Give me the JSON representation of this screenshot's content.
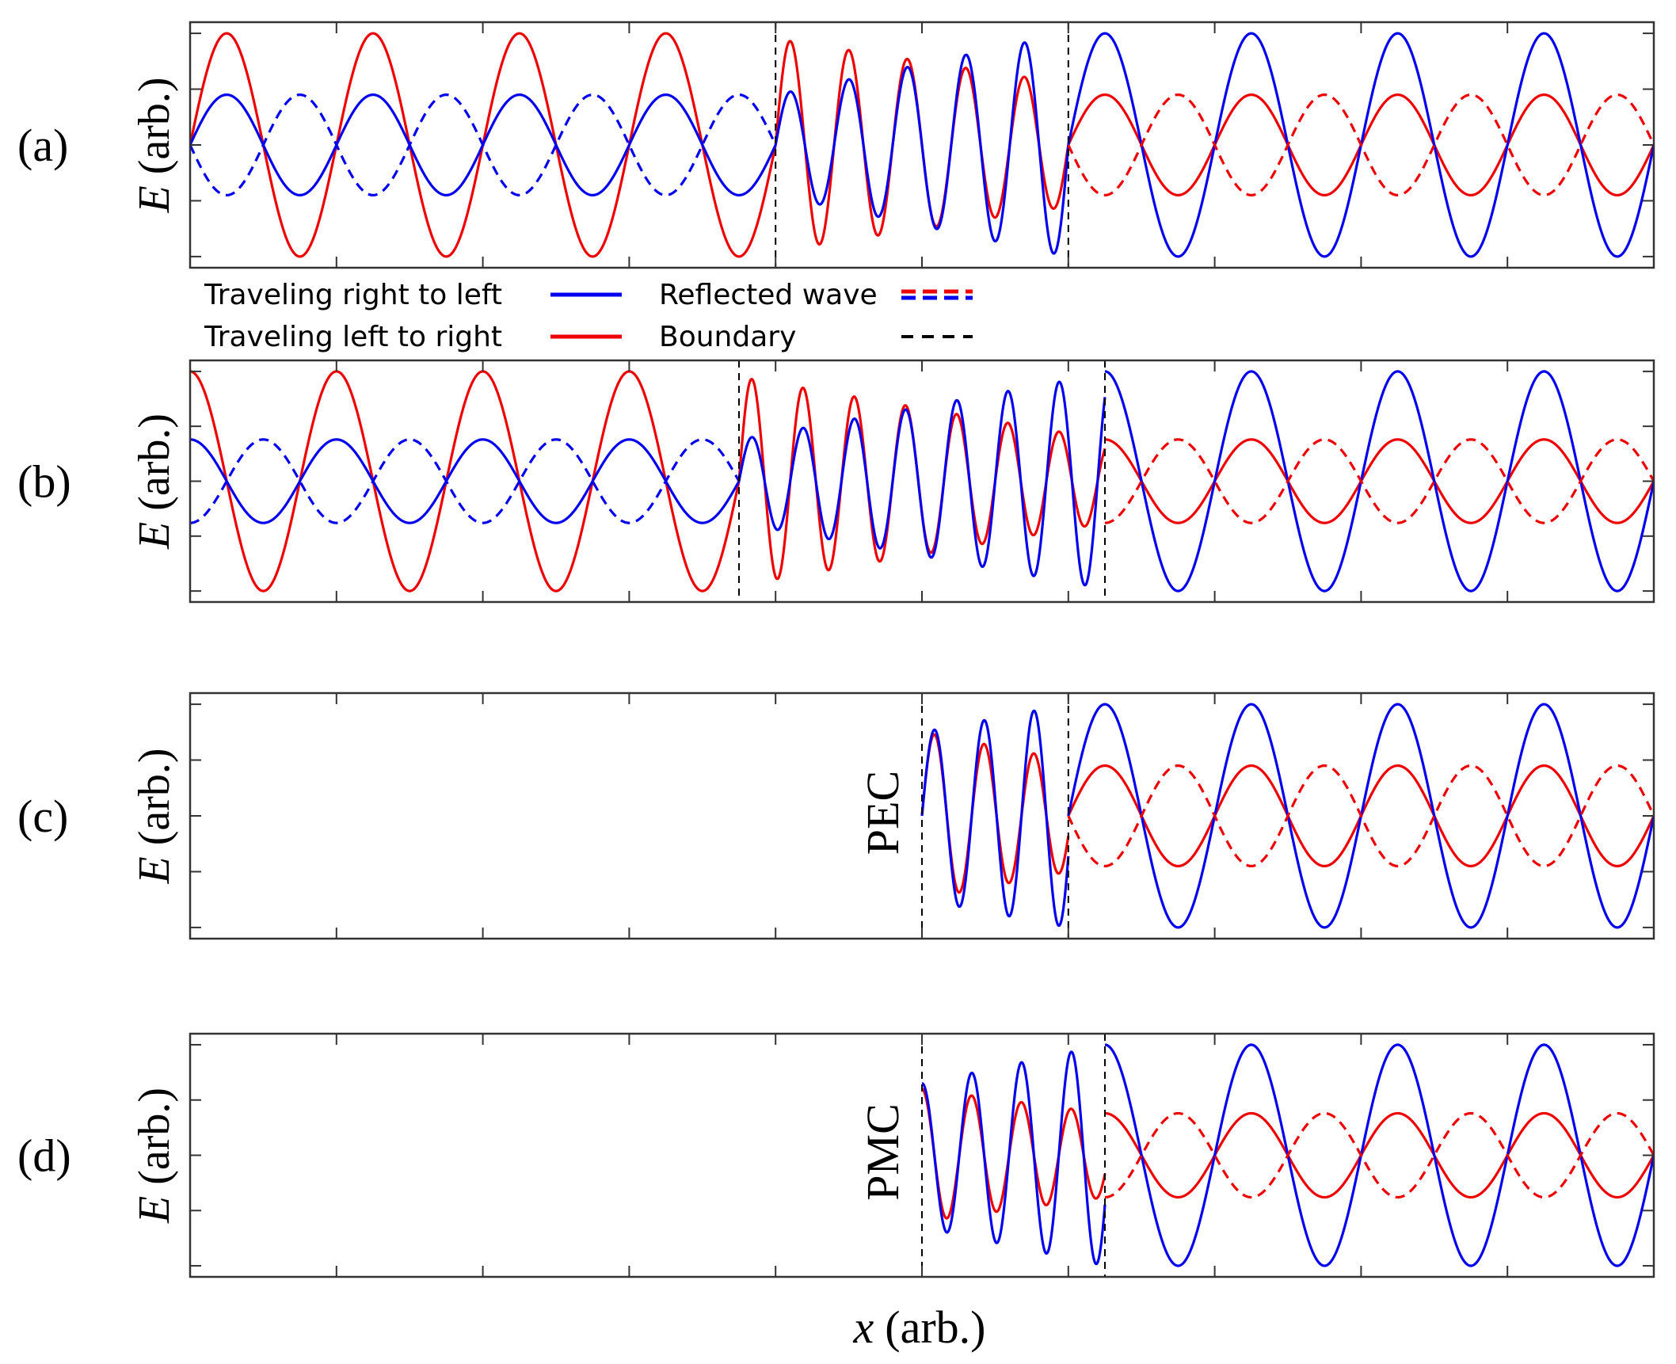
{
  "colors": {
    "right_to_left": "#0000ee",
    "left_to_right": "#ee0000",
    "boundary": "#000000",
    "axes": "#333333"
  },
  "legend": {
    "traveling_right_to_left": "Traveling right to left",
    "traveling_left_to_right": "Traveling left to right",
    "reflected_wave": "Reflected wave",
    "boundary": "Boundary"
  },
  "xlabel": {
    "var": "x",
    "unit": "(arb.)"
  },
  "chart_data": [
    {
      "type": "line",
      "panel_label": "(a)",
      "ylabel": {
        "var": "E",
        "unit": "(arb.)"
      },
      "xlim": [
        0,
        1
      ],
      "ylim": [
        -1.1,
        1.1
      ],
      "grid": false,
      "x_major_ticks": [
        0.1,
        0.2,
        0.3,
        0.4,
        0.5,
        0.6,
        0.7,
        0.8,
        0.9
      ],
      "y_major_ticks": [
        -1,
        -0.5,
        0,
        0.5,
        1
      ],
      "boundaries_x": [
        0.4,
        0.6
      ],
      "region_annotation": "",
      "series": [
        {
          "name": "Traveling left to right",
          "color": "red",
          "style": "solid",
          "x_range": [
            0,
            0.4
          ],
          "amplitude": 1.0,
          "amplitude_end": 1.0,
          "period": 0.1,
          "phase": 0
        },
        {
          "name": "Traveling right to left",
          "color": "blue",
          "style": "solid",
          "x_range": [
            0,
            0.4
          ],
          "amplitude": 0.45,
          "amplitude_end": 0.45,
          "period": 0.1,
          "phase": 0
        },
        {
          "name": "Reflected wave",
          "color": "blue",
          "style": "dashed",
          "x_range": [
            0,
            0.4
          ],
          "amplitude": -0.45,
          "amplitude_end": -0.45,
          "period": 0.1,
          "phase": 0
        },
        {
          "name": "Traveling left to right",
          "color": "red",
          "style": "solid",
          "x_range": [
            0.4,
            0.6
          ],
          "amplitude": 0.95,
          "amplitude_end": 0.55,
          "period": 0.04,
          "phase": 0
        },
        {
          "name": "Traveling right to left",
          "color": "blue",
          "style": "solid",
          "x_range": [
            0.4,
            0.6
          ],
          "amplitude": 0.45,
          "amplitude_end": 1.0,
          "period": 0.04,
          "phase": 0
        },
        {
          "name": "Traveling left to right",
          "color": "red",
          "style": "solid",
          "x_range": [
            0.6,
            1.0
          ],
          "amplitude": 0.45,
          "amplitude_end": 0.45,
          "period": 0.1,
          "phase": 0
        },
        {
          "name": "Traveling right to left",
          "color": "blue",
          "style": "solid",
          "x_range": [
            0.6,
            1.0
          ],
          "amplitude": 1.0,
          "amplitude_end": 1.0,
          "period": 0.1,
          "phase": 0
        },
        {
          "name": "Reflected wave",
          "color": "red",
          "style": "dashed",
          "x_range": [
            0.6,
            1.0
          ],
          "amplitude": -0.45,
          "amplitude_end": -0.45,
          "period": 0.1,
          "phase": 0
        }
      ]
    },
    {
      "type": "line",
      "panel_label": "(b)",
      "ylabel": {
        "var": "E",
        "unit": "(arb.)"
      },
      "xlim": [
        0,
        1
      ],
      "ylim": [
        -1.1,
        1.1
      ],
      "grid": false,
      "x_major_ticks": [
        0.1,
        0.2,
        0.3,
        0.4,
        0.5,
        0.6,
        0.7,
        0.8,
        0.9
      ],
      "y_major_ticks": [
        -1,
        -0.5,
        0,
        0.5,
        1
      ],
      "boundaries_x": [
        0.375,
        0.625
      ],
      "region_annotation": "",
      "series": [
        {
          "name": "Traveling left to right",
          "color": "red",
          "style": "solid",
          "x_range": [
            0,
            0.375
          ],
          "amplitude": 1.0,
          "amplitude_end": 1.0,
          "period": 0.1,
          "phase": 0.25
        },
        {
          "name": "Traveling right to left",
          "color": "blue",
          "style": "solid",
          "x_range": [
            0,
            0.375
          ],
          "amplitude": 0.38,
          "amplitude_end": 0.38,
          "period": 0.1,
          "phase": 0.25
        },
        {
          "name": "Reflected wave",
          "color": "blue",
          "style": "dashed",
          "x_range": [
            0,
            0.375
          ],
          "amplitude": -0.38,
          "amplitude_end": -0.38,
          "period": 0.1,
          "phase": 0.25
        },
        {
          "name": "Traveling left to right",
          "color": "red",
          "style": "solid",
          "x_range": [
            0.375,
            0.625
          ],
          "amplitude": 0.95,
          "amplitude_end": 0.38,
          "period": 0.035,
          "phase": 0
        },
        {
          "name": "Traveling right to left",
          "color": "blue",
          "style": "solid",
          "x_range": [
            0.375,
            0.625
          ],
          "amplitude": 0.38,
          "amplitude_end": 0.98,
          "period": 0.035,
          "phase": 0
        },
        {
          "name": "Traveling left to right",
          "color": "red",
          "style": "solid",
          "x_range": [
            0.625,
            1.0
          ],
          "amplitude": 0.38,
          "amplitude_end": 0.38,
          "period": 0.1,
          "phase": 0.25
        },
        {
          "name": "Traveling right to left",
          "color": "blue",
          "style": "solid",
          "x_range": [
            0.625,
            1.0
          ],
          "amplitude": 1.0,
          "amplitude_end": 1.0,
          "period": 0.1,
          "phase": 0.25
        },
        {
          "name": "Reflected wave",
          "color": "red",
          "style": "dashed",
          "x_range": [
            0.625,
            1.0
          ],
          "amplitude": -0.38,
          "amplitude_end": -0.38,
          "period": 0.1,
          "phase": 0.25
        }
      ]
    },
    {
      "type": "line",
      "panel_label": "(c)",
      "ylabel": {
        "var": "E",
        "unit": "(arb.)"
      },
      "xlim": [
        0,
        1
      ],
      "ylim": [
        -1.1,
        1.1
      ],
      "grid": false,
      "x_major_ticks": [
        0.1,
        0.2,
        0.3,
        0.4,
        0.5,
        0.6,
        0.7,
        0.8,
        0.9
      ],
      "y_major_ticks": [
        -1,
        -0.5,
        0,
        0.5,
        1
      ],
      "boundaries_x": [
        0.5,
        0.6
      ],
      "region_annotation": "PEC",
      "series": [
        {
          "name": "Traveling left to right",
          "color": "red",
          "style": "solid",
          "x_range": [
            0.5,
            0.6
          ],
          "amplitude": 0.75,
          "amplitude_end": 0.5,
          "period": 0.034,
          "phase": 0
        },
        {
          "name": "Traveling right to left",
          "color": "blue",
          "style": "solid",
          "x_range": [
            0.5,
            0.6
          ],
          "amplitude": 0.75,
          "amplitude_end": 1.0,
          "period": 0.034,
          "phase": 0
        },
        {
          "name": "Traveling left to right",
          "color": "red",
          "style": "solid",
          "x_range": [
            0.6,
            1.0
          ],
          "amplitude": 0.45,
          "amplitude_end": 0.45,
          "period": 0.1,
          "phase": 0
        },
        {
          "name": "Traveling right to left",
          "color": "blue",
          "style": "solid",
          "x_range": [
            0.6,
            1.0
          ],
          "amplitude": 1.0,
          "amplitude_end": 1.0,
          "period": 0.1,
          "phase": 0
        },
        {
          "name": "Reflected wave",
          "color": "red",
          "style": "dashed",
          "x_range": [
            0.6,
            1.0
          ],
          "amplitude": -0.45,
          "amplitude_end": -0.45,
          "period": 0.1,
          "phase": 0
        }
      ]
    },
    {
      "type": "line",
      "panel_label": "(d)",
      "ylabel": {
        "var": "E",
        "unit": "(arb.)"
      },
      "xlim": [
        0,
        1
      ],
      "ylim": [
        -1.1,
        1.1
      ],
      "grid": false,
      "x_major_ticks": [
        0.1,
        0.2,
        0.3,
        0.4,
        0.5,
        0.6,
        0.7,
        0.8,
        0.9
      ],
      "y_major_ticks": [
        -1,
        -0.5,
        0,
        0.5,
        1
      ],
      "boundaries_x": [
        0.5,
        0.625
      ],
      "region_annotation": "PMC",
      "series": [
        {
          "name": "Traveling left to right",
          "color": "red",
          "style": "solid",
          "x_range": [
            0.5,
            0.625
          ],
          "amplitude": 0.6,
          "amplitude_end": 0.38,
          "period": 0.034,
          "phase": 0.25
        },
        {
          "name": "Traveling right to left",
          "color": "blue",
          "style": "solid",
          "x_range": [
            0.5,
            0.625
          ],
          "amplitude": 0.65,
          "amplitude_end": 1.0,
          "period": 0.034,
          "phase": 0.25
        },
        {
          "name": "Traveling left to right",
          "color": "red",
          "style": "solid",
          "x_range": [
            0.625,
            1.0
          ],
          "amplitude": 0.38,
          "amplitude_end": 0.38,
          "period": 0.1,
          "phase": 0.25
        },
        {
          "name": "Traveling right to left",
          "color": "blue",
          "style": "solid",
          "x_range": [
            0.625,
            1.0
          ],
          "amplitude": 1.0,
          "amplitude_end": 1.0,
          "period": 0.1,
          "phase": 0.25
        },
        {
          "name": "Reflected wave",
          "color": "red",
          "style": "dashed",
          "x_range": [
            0.625,
            1.0
          ],
          "amplitude": -0.38,
          "amplitude_end": -0.38,
          "period": 0.1,
          "phase": 0.25
        }
      ]
    }
  ]
}
